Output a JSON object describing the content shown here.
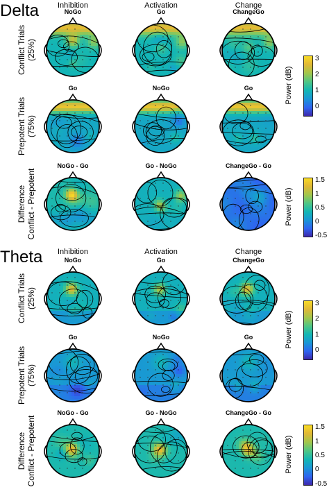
{
  "sections": [
    {
      "title": "Delta",
      "columns": [
        "Inhibition",
        "Activation",
        "Change"
      ],
      "rows": [
        {
          "label_lines": [
            "Conflict Trials",
            "(25%)"
          ],
          "topos": [
            "NoGo",
            "Go",
            "ChangeGo"
          ],
          "pattern": "frontal_strong"
        },
        {
          "label_lines": [
            "Prepotent Trials",
            "(75%)"
          ],
          "topos": [
            "Go",
            "NoGo",
            "Go"
          ],
          "pattern": "frontal_band"
        },
        {
          "label_lines": [
            "Difference",
            "Conflict - Prepotent"
          ],
          "topos": [
            "NoGo - Go",
            "Go - NoGo",
            "ChangeGo - Go"
          ],
          "pattern": "difference"
        }
      ],
      "colorbars": [
        {
          "title": "Power (dB)",
          "ticks": [
            "3",
            "2",
            "1",
            "0"
          ],
          "range": [
            -0.6,
            3.2
          ]
        },
        {
          "title": "Power (dB)",
          "ticks": [
            "1.5",
            "1",
            "0.5",
            "0",
            "-0.5"
          ],
          "range": [
            -0.55,
            1.6
          ]
        }
      ]
    },
    {
      "title": "Theta",
      "columns": [
        "Inhibition",
        "Activation",
        "Change"
      ],
      "rows": [
        {
          "label_lines": [
            "Conflict Trials",
            "(25%)"
          ],
          "topos": [
            "NoGo",
            "Go",
            "ChangeGo"
          ],
          "pattern": "central_strong"
        },
        {
          "label_lines": [
            "Prepotent Trials",
            "(75%)"
          ],
          "topos": [
            "Go",
            "NoGo",
            "Go"
          ],
          "pattern": "central_weak"
        },
        {
          "label_lines": [
            "Difference",
            "Conflict - Prepotent"
          ],
          "topos": [
            "NoGo - Go",
            "Go - NoGo",
            "ChangeGo - Go"
          ],
          "pattern": "central_diff"
        }
      ],
      "colorbars": [
        {
          "title": "Power (dB)",
          "ticks": [
            "3",
            "2",
            "1",
            "0"
          ],
          "range": [
            -0.6,
            3.2
          ]
        },
        {
          "title": "Power (dB)",
          "ticks": [
            "1.5",
            "1",
            "0.5",
            "0",
            "-0.5"
          ],
          "range": [
            -0.55,
            1.6
          ]
        }
      ]
    }
  ],
  "colormap": [
    "#3e26a8",
    "#2f64f0",
    "#1a96d6",
    "#13b6b4",
    "#4fc685",
    "#a2c64b",
    "#e1b836",
    "#f9dc24"
  ]
}
